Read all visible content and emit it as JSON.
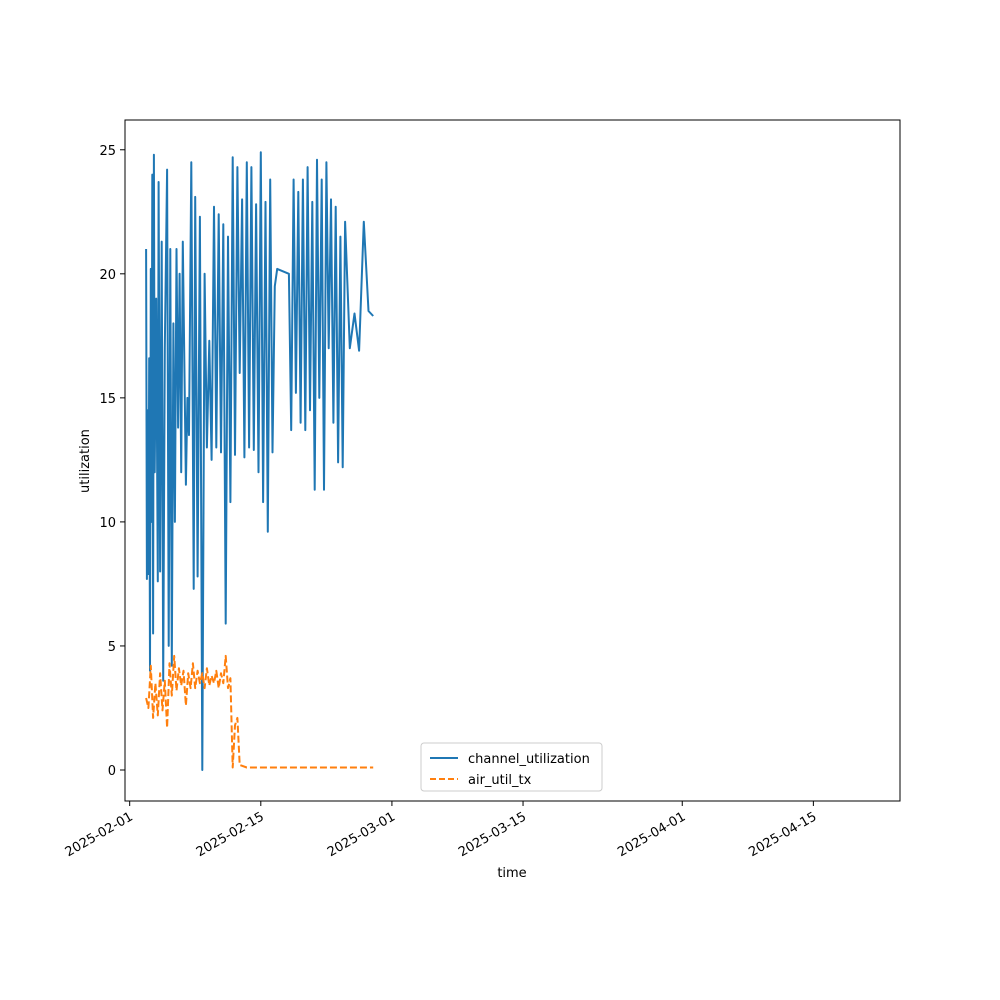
{
  "chart_data": {
    "type": "line",
    "title": "",
    "xlabel": "time",
    "ylabel": "utilization",
    "xlim": [
      "2025-01-31T12:00",
      "2025-04-24T06:00"
    ],
    "ylim": [
      -1.25,
      26.2
    ],
    "x_ticks": [
      "2025-02-01",
      "2025-02-15",
      "2025-03-01",
      "2025-03-15",
      "2025-04-01",
      "2025-04-15"
    ],
    "y_ticks": [
      0,
      5,
      10,
      15,
      20,
      25
    ],
    "grid": false,
    "legend": "lower center",
    "series": [
      {
        "name": "channel_utilization",
        "color": "#1f77b4",
        "dash": "solid",
        "points": [
          [
            "2025-02-02T18:00",
            21.0
          ],
          [
            "2025-02-02T20:00",
            7.7
          ],
          [
            "2025-02-02T22:00",
            14.5
          ],
          [
            "2025-02-03T00:00",
            7.9
          ],
          [
            "2025-02-03T02:00",
            16.6
          ],
          [
            "2025-02-03T04:00",
            4.0
          ],
          [
            "2025-02-03T06:00",
            20.2
          ],
          [
            "2025-02-03T08:00",
            10.0
          ],
          [
            "2025-02-03T10:00",
            24.0
          ],
          [
            "2025-02-03T12:00",
            5.5
          ],
          [
            "2025-02-03T14:00",
            24.8
          ],
          [
            "2025-02-03T16:00",
            12.0
          ],
          [
            "2025-02-03T20:00",
            19.0
          ],
          [
            "2025-02-04T00:00",
            7.6
          ],
          [
            "2025-02-04T02:00",
            23.7
          ],
          [
            "2025-02-04T06:00",
            8.0
          ],
          [
            "2025-02-04T10:00",
            21.3
          ],
          [
            "2025-02-04T14:00",
            3.6
          ],
          [
            "2025-02-04T18:00",
            17.0
          ],
          [
            "2025-02-05T00:00",
            24.2
          ],
          [
            "2025-02-05T04:00",
            5.0
          ],
          [
            "2025-02-05T08:00",
            21.0
          ],
          [
            "2025-02-05T12:00",
            4.2
          ],
          [
            "2025-02-05T16:00",
            18.0
          ],
          [
            "2025-02-05T20:00",
            10.0
          ],
          [
            "2025-02-06T00:00",
            21.0
          ],
          [
            "2025-02-06T04:00",
            13.8
          ],
          [
            "2025-02-06T08:00",
            20.0
          ],
          [
            "2025-02-06T12:00",
            12.0
          ],
          [
            "2025-02-06T16:00",
            21.3
          ],
          [
            "2025-02-07T00:00",
            11.5
          ],
          [
            "2025-02-07T04:00",
            15.0
          ],
          [
            "2025-02-07T08:00",
            13.5
          ],
          [
            "2025-02-07T14:00",
            24.5
          ],
          [
            "2025-02-07T20:00",
            7.3
          ],
          [
            "2025-02-08T00:00",
            23.1
          ],
          [
            "2025-02-08T06:00",
            7.8
          ],
          [
            "2025-02-08T12:00",
            22.3
          ],
          [
            "2025-02-08T18:00",
            0.0
          ],
          [
            "2025-02-09T00:00",
            20.0
          ],
          [
            "2025-02-09T06:00",
            13.0
          ],
          [
            "2025-02-09T12:00",
            17.3
          ],
          [
            "2025-02-09T18:00",
            12.5
          ],
          [
            "2025-02-10T00:00",
            22.7
          ],
          [
            "2025-02-10T06:00",
            13.0
          ],
          [
            "2025-02-10T12:00",
            22.4
          ],
          [
            "2025-02-10T18:00",
            12.8
          ],
          [
            "2025-02-11T00:00",
            22.0
          ],
          [
            "2025-02-11T06:00",
            5.9
          ],
          [
            "2025-02-11T12:00",
            21.5
          ],
          [
            "2025-02-11T18:00",
            10.8
          ],
          [
            "2025-02-12T00:00",
            24.7
          ],
          [
            "2025-02-12T06:00",
            12.7
          ],
          [
            "2025-02-12T12:00",
            24.3
          ],
          [
            "2025-02-12T18:00",
            16.0
          ],
          [
            "2025-02-13T00:00",
            23.0
          ],
          [
            "2025-02-13T06:00",
            12.6
          ],
          [
            "2025-02-13T12:00",
            24.5
          ],
          [
            "2025-02-13T18:00",
            13.0
          ],
          [
            "2025-02-14T00:00",
            24.3
          ],
          [
            "2025-02-14T06:00",
            12.9
          ],
          [
            "2025-02-14T12:00",
            22.8
          ],
          [
            "2025-02-14T18:00",
            12.0
          ],
          [
            "2025-02-15T00:00",
            24.9
          ],
          [
            "2025-02-15T06:00",
            10.8
          ],
          [
            "2025-02-15T12:00",
            22.9
          ],
          [
            "2025-02-15T18:00",
            9.6
          ],
          [
            "2025-02-16T00:00",
            23.8
          ],
          [
            "2025-02-16T06:00",
            12.8
          ],
          [
            "2025-02-16T12:00",
            19.5
          ],
          [
            "2025-02-16T18:00",
            20.2
          ],
          [
            "2025-02-18T00:00",
            20.0
          ],
          [
            "2025-02-18T06:00",
            13.7
          ],
          [
            "2025-02-18T12:00",
            23.8
          ],
          [
            "2025-02-18T18:00",
            15.2
          ],
          [
            "2025-02-19T00:00",
            23.3
          ],
          [
            "2025-02-19T06:00",
            14.0
          ],
          [
            "2025-02-19T12:00",
            23.8
          ],
          [
            "2025-02-19T18:00",
            13.7
          ],
          [
            "2025-02-20T00:00",
            24.3
          ],
          [
            "2025-02-20T06:00",
            14.5
          ],
          [
            "2025-02-20T12:00",
            22.9
          ],
          [
            "2025-02-20T18:00",
            11.3
          ],
          [
            "2025-02-21T00:00",
            24.6
          ],
          [
            "2025-02-21T06:00",
            15.0
          ],
          [
            "2025-02-21T12:00",
            23.8
          ],
          [
            "2025-02-21T18:00",
            11.3
          ],
          [
            "2025-02-22T00:00",
            24.5
          ],
          [
            "2025-02-22T06:00",
            17.0
          ],
          [
            "2025-02-22T12:00",
            23.0
          ],
          [
            "2025-02-22T18:00",
            14.0
          ],
          [
            "2025-02-23T00:00",
            22.7
          ],
          [
            "2025-02-23T06:00",
            12.4
          ],
          [
            "2025-02-23T12:00",
            21.5
          ],
          [
            "2025-02-23T18:00",
            12.2
          ],
          [
            "2025-02-24T00:00",
            22.1
          ],
          [
            "2025-02-24T12:00",
            17.0
          ],
          [
            "2025-02-25T00:00",
            18.4
          ],
          [
            "2025-02-25T12:00",
            16.9
          ],
          [
            "2025-02-26T00:00",
            22.1
          ],
          [
            "2025-02-26T12:00",
            18.5
          ],
          [
            "2025-02-27T00:00",
            18.3
          ]
        ]
      },
      {
        "name": "air_util_tx",
        "color": "#ff7f0e",
        "dash": "dashed",
        "points": [
          [
            "2025-02-02T18:00",
            2.9
          ],
          [
            "2025-02-03T00:00",
            2.5
          ],
          [
            "2025-02-03T06:00",
            4.2
          ],
          [
            "2025-02-03T12:00",
            2.1
          ],
          [
            "2025-02-03T18:00",
            3.5
          ],
          [
            "2025-02-04T00:00",
            2.2
          ],
          [
            "2025-02-04T06:00",
            3.9
          ],
          [
            "2025-02-04T12:00",
            2.4
          ],
          [
            "2025-02-04T18:00",
            3.6
          ],
          [
            "2025-02-05T00:00",
            1.7
          ],
          [
            "2025-02-05T06:00",
            4.3
          ],
          [
            "2025-02-05T12:00",
            3.0
          ],
          [
            "2025-02-05T18:00",
            4.6
          ],
          [
            "2025-02-06T00:00",
            3.2
          ],
          [
            "2025-02-06T06:00",
            4.1
          ],
          [
            "2025-02-06T12:00",
            3.4
          ],
          [
            "2025-02-06T18:00",
            4.0
          ],
          [
            "2025-02-07T00:00",
            2.6
          ],
          [
            "2025-02-07T06:00",
            3.9
          ],
          [
            "2025-02-07T12:00",
            3.3
          ],
          [
            "2025-02-07T18:00",
            4.3
          ],
          [
            "2025-02-08T00:00",
            3.3
          ],
          [
            "2025-02-08T06:00",
            4.0
          ],
          [
            "2025-02-08T12:00",
            3.5
          ],
          [
            "2025-02-08T18:00",
            3.9
          ],
          [
            "2025-02-09T00:00",
            3.3
          ],
          [
            "2025-02-09T06:00",
            4.1
          ],
          [
            "2025-02-09T12:00",
            3.4
          ],
          [
            "2025-02-09T18:00",
            3.8
          ],
          [
            "2025-02-10T00:00",
            3.5
          ],
          [
            "2025-02-10T06:00",
            4.0
          ],
          [
            "2025-02-10T12:00",
            3.3
          ],
          [
            "2025-02-10T18:00",
            3.9
          ],
          [
            "2025-02-11T00:00",
            3.5
          ],
          [
            "2025-02-11T06:00",
            4.6
          ],
          [
            "2025-02-11T12:00",
            3.3
          ],
          [
            "2025-02-11T18:00",
            3.7
          ],
          [
            "2025-02-12T00:00",
            0.1
          ],
          [
            "2025-02-12T06:00",
            1.8
          ],
          [
            "2025-02-12T12:00",
            2.1
          ],
          [
            "2025-02-12T18:00",
            0.2
          ],
          [
            "2025-02-13T12:00",
            0.1
          ],
          [
            "2025-02-14T12:00",
            0.1
          ],
          [
            "2025-02-15T12:00",
            0.1
          ],
          [
            "2025-02-16T12:00",
            0.1
          ],
          [
            "2025-02-17T12:00",
            0.1
          ],
          [
            "2025-02-18T12:00",
            0.1
          ],
          [
            "2025-02-19T12:00",
            0.1
          ],
          [
            "2025-02-20T12:00",
            0.1
          ],
          [
            "2025-02-21T12:00",
            0.1
          ],
          [
            "2025-02-22T12:00",
            0.1
          ],
          [
            "2025-02-23T12:00",
            0.1
          ],
          [
            "2025-02-24T12:00",
            0.1
          ],
          [
            "2025-02-25T12:00",
            0.1
          ],
          [
            "2025-02-26T12:00",
            0.1
          ],
          [
            "2025-02-27T00:00",
            0.1
          ]
        ]
      }
    ]
  }
}
